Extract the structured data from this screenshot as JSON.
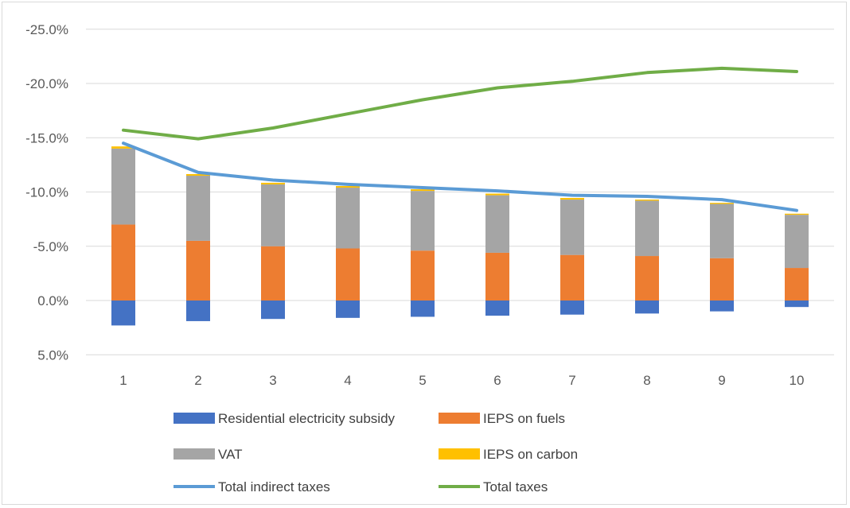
{
  "chart_data": {
    "type": "bar",
    "stacked": true,
    "y_axis_inverted": true,
    "categories": [
      "1",
      "2",
      "3",
      "4",
      "5",
      "6",
      "7",
      "8",
      "9",
      "10"
    ],
    "ylim": [
      5.0,
      -25.0
    ],
    "yticks": [
      5.0,
      0.0,
      -5.0,
      -10.0,
      -15.0,
      -20.0,
      -25.0
    ],
    "ytick_labels": [
      "5.0%",
      "0.0%",
      "-5.0%",
      "-10.0%",
      "-15.0%",
      "-20.0%",
      "-25.0%"
    ],
    "grid": true,
    "legend_position": "bottom",
    "series": [
      {
        "name": "Residential electricity subsidy",
        "kind": "bar",
        "color": "#4472c4",
        "values": [
          2.3,
          1.9,
          1.7,
          1.6,
          1.5,
          1.4,
          1.3,
          1.2,
          1.0,
          0.6
        ]
      },
      {
        "name": "IEPS on fuels",
        "kind": "bar",
        "color": "#ed7d31",
        "values": [
          -7.0,
          -5.5,
          -5.0,
          -4.8,
          -4.6,
          -4.4,
          -4.2,
          -4.1,
          -3.9,
          -3.0
        ]
      },
      {
        "name": "VAT",
        "kind": "bar",
        "color": "#a5a5a5",
        "values": [
          -7.0,
          -6.0,
          -5.7,
          -5.6,
          -5.5,
          -5.3,
          -5.1,
          -5.1,
          -5.0,
          -4.9
        ]
      },
      {
        "name": "IEPS on carbon",
        "kind": "bar",
        "color": "#ffc000",
        "values": [
          -0.2,
          -0.15,
          -0.15,
          -0.15,
          -0.15,
          -0.15,
          -0.15,
          -0.1,
          -0.1,
          -0.1
        ]
      },
      {
        "name": "Total indirect taxes",
        "kind": "line",
        "color": "#5b9bd5",
        "values": [
          -14.5,
          -11.8,
          -11.1,
          -10.7,
          -10.4,
          -10.1,
          -9.7,
          -9.6,
          -9.3,
          -8.3
        ]
      },
      {
        "name": "Total taxes",
        "kind": "line",
        "color": "#70ad47",
        "values": [
          -15.7,
          -14.9,
          -15.9,
          -17.2,
          -18.5,
          -19.6,
          -20.2,
          -21.0,
          -21.4,
          -21.1
        ]
      }
    ]
  }
}
